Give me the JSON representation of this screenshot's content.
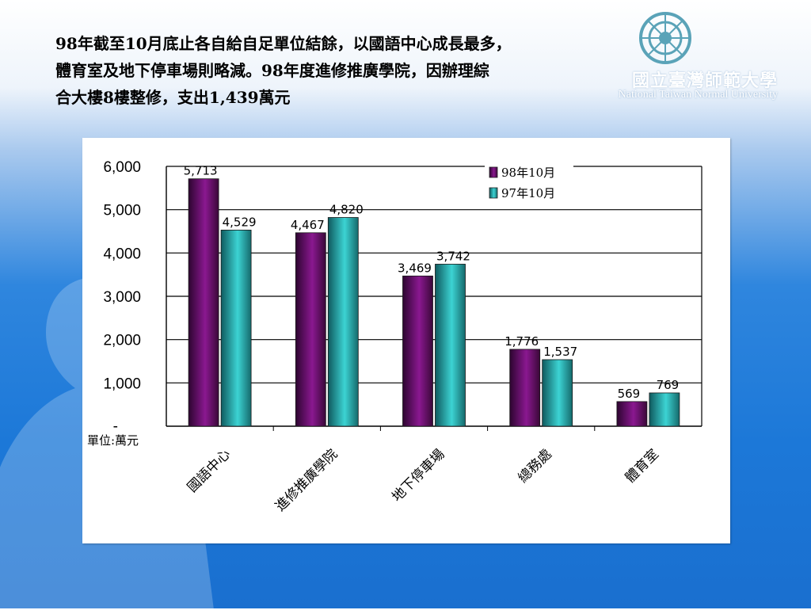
{
  "slide": {
    "title_lines": [
      "98年截至10月底止各自給自足單位結餘，以國語中心成長最多，",
      "體育室及地下停車場則略減。98年度進修推廣學院，因辦理綜",
      "合大樓8樓整修，支出1,439萬元"
    ]
  },
  "logo": {
    "chinese_name": "國立臺灣師範大學",
    "english_name": "National Taiwan Normal University"
  },
  "chart_data": {
    "type": "bar",
    "categories": [
      "國語中心",
      "進修推廣學院",
      "地下停車場",
      "總務處",
      "體育室"
    ],
    "series": [
      {
        "name": "98年10月",
        "values": [
          5713,
          4467,
          3469,
          1776,
          569
        ],
        "labels": [
          "5,713",
          "4,467",
          "3,469",
          "1,776",
          "569"
        ],
        "color": "#6a0f6a"
      },
      {
        "name": "97年10月",
        "values": [
          4529,
          4820,
          3742,
          1537,
          769
        ],
        "labels": [
          "4,529",
          "4,820",
          "3,742",
          "1,537",
          "769"
        ],
        "color": "#2aa6a6"
      }
    ],
    "y_ticks": [
      0,
      1000,
      2000,
      3000,
      4000,
      5000,
      6000
    ],
    "y_tick_labels": [
      "-",
      "1,000",
      "2,000",
      "3,000",
      "4,000",
      "5,000",
      "6,000"
    ],
    "ylim": [
      0,
      6000
    ],
    "unit_label": "單位:萬元",
    "grid": true,
    "legend_position": "top-right"
  }
}
